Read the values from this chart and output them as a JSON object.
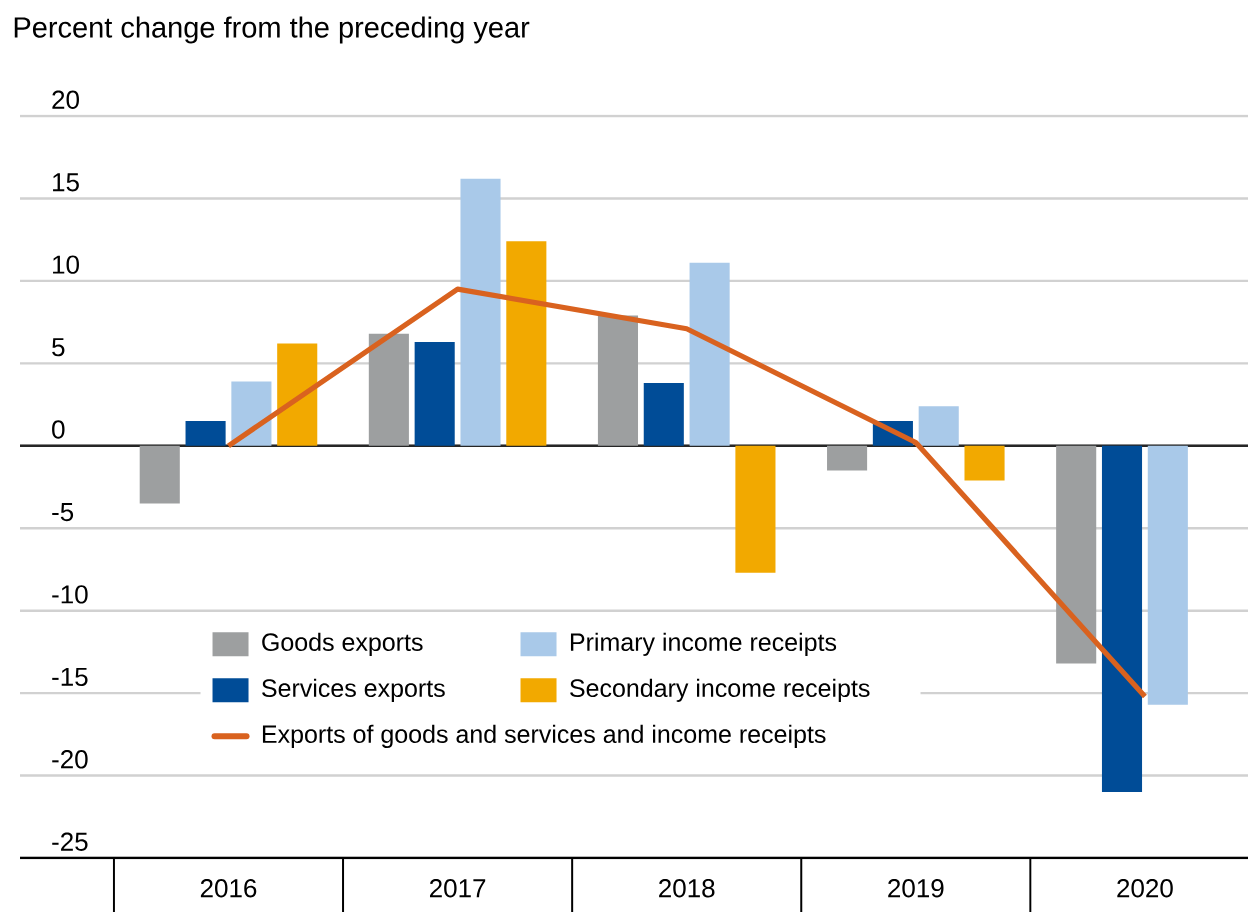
{
  "chart_data": {
    "type": "bar",
    "title": "Percent change from the preceding year",
    "categories": [
      "2016",
      "2017",
      "2018",
      "2019",
      "2020"
    ],
    "series": [
      {
        "name": "Goods exports",
        "color": "#9d9fa0",
        "values": [
          -3.5,
          6.8,
          7.9,
          -1.5,
          -13.2
        ]
      },
      {
        "name": "Services exports",
        "color": "#004c97",
        "values": [
          1.5,
          6.3,
          3.8,
          1.5,
          -21.0
        ]
      },
      {
        "name": "Primary income receipts",
        "color": "#a9c9e9",
        "values": [
          3.9,
          16.2,
          11.1,
          2.4,
          -15.7
        ]
      },
      {
        "name": "Secondary income receipts",
        "color": "#f2a900",
        "values": [
          6.2,
          12.4,
          -7.7,
          -2.1,
          null
        ]
      },
      {
        "name": "Exports of goods and services and income receipts",
        "type": "line",
        "color": "#d9621f",
        "values": [
          0.0,
          9.5,
          7.1,
          0.2,
          -15.2
        ]
      }
    ],
    "ylim": [
      -25,
      20
    ],
    "yticks": [
      -25,
      -20,
      -15,
      -10,
      -5,
      0,
      5,
      10,
      15,
      20
    ],
    "grid": "y",
    "legend": "bottom left",
    "marker": "none",
    "line_style": "solid"
  }
}
